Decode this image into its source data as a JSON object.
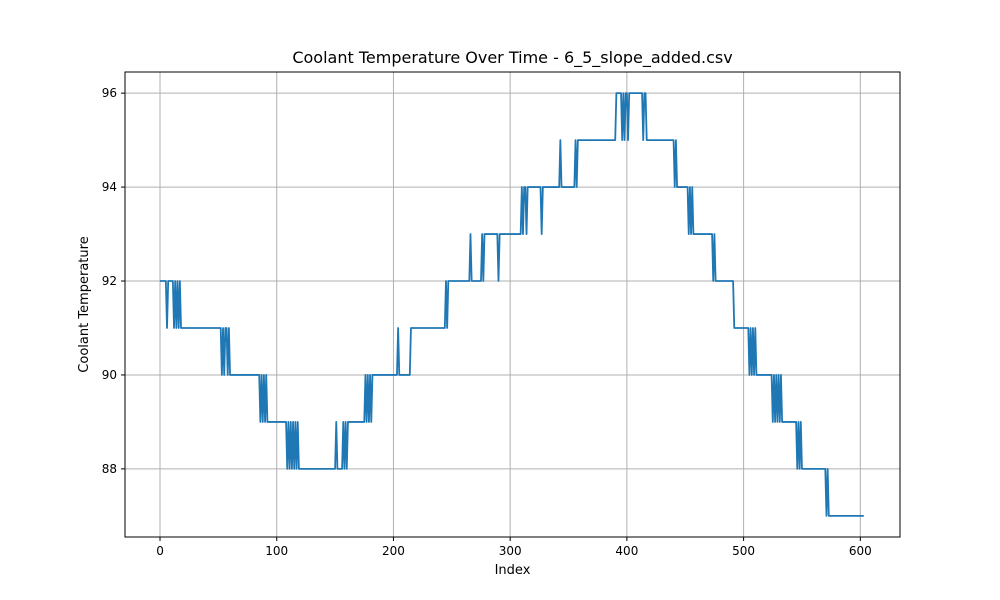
{
  "chart_data": {
    "type": "line",
    "title": "Coolant Temperature Over Time - 6_5_slope_added.csv",
    "xlabel": "Index",
    "ylabel": "Coolant Temperature",
    "xlim": [
      -30,
      634
    ],
    "ylim": [
      86.55,
      96.45
    ],
    "xticks": [
      0,
      100,
      200,
      300,
      400,
      500,
      600
    ],
    "yticks": [
      88,
      90,
      92,
      94,
      96
    ],
    "grid": true,
    "series": [
      {
        "color": "#1f77b4",
        "points": [
          [
            0,
            92
          ],
          [
            5,
            92
          ],
          [
            6,
            91
          ],
          [
            7,
            92
          ],
          [
            11,
            92
          ],
          [
            12,
            91
          ],
          [
            13,
            92
          ],
          [
            14,
            91
          ],
          [
            15,
            92
          ],
          [
            16,
            91
          ],
          [
            17,
            92
          ],
          [
            18,
            91
          ],
          [
            19,
            91
          ],
          [
            52,
            91
          ],
          [
            53,
            90
          ],
          [
            54,
            91
          ],
          [
            55,
            90
          ],
          [
            56,
            91
          ],
          [
            57,
            91
          ],
          [
            58,
            90
          ],
          [
            59,
            91
          ],
          [
            60,
            90
          ],
          [
            85,
            90
          ],
          [
            86,
            89
          ],
          [
            87,
            90
          ],
          [
            88,
            89
          ],
          [
            89,
            90
          ],
          [
            90,
            89
          ],
          [
            91,
            90
          ],
          [
            92,
            89
          ],
          [
            108,
            89
          ],
          [
            109,
            88
          ],
          [
            110,
            89
          ],
          [
            111,
            88
          ],
          [
            112,
            89
          ],
          [
            113,
            88
          ],
          [
            114,
            89
          ],
          [
            115,
            88
          ],
          [
            116,
            89
          ],
          [
            117,
            88
          ],
          [
            118,
            89
          ],
          [
            119,
            88
          ],
          [
            150,
            88
          ],
          [
            151,
            89
          ],
          [
            152,
            88
          ],
          [
            156,
            88
          ],
          [
            157,
            89
          ],
          [
            158,
            88
          ],
          [
            159,
            89
          ],
          [
            160,
            88
          ],
          [
            161,
            89
          ],
          [
            175,
            89
          ],
          [
            176,
            90
          ],
          [
            177,
            89
          ],
          [
            178,
            90
          ],
          [
            179,
            89
          ],
          [
            180,
            90
          ],
          [
            181,
            89
          ],
          [
            182,
            90
          ],
          [
            183,
            90
          ],
          [
            203,
            90
          ],
          [
            204,
            91
          ],
          [
            205,
            90
          ],
          [
            214,
            90
          ],
          [
            215,
            91
          ],
          [
            244,
            91
          ],
          [
            245,
            92
          ],
          [
            246,
            91
          ],
          [
            247,
            92
          ],
          [
            265,
            92
          ],
          [
            266,
            93
          ],
          [
            267,
            92
          ],
          [
            275,
            92
          ],
          [
            276,
            93
          ],
          [
            277,
            92
          ],
          [
            278,
            93
          ],
          [
            279,
            93
          ],
          [
            289,
            93
          ],
          [
            290,
            92
          ],
          [
            291,
            93
          ],
          [
            309,
            93
          ],
          [
            310,
            94
          ],
          [
            311,
            93
          ],
          [
            312,
            94
          ],
          [
            313,
            94
          ],
          [
            314,
            93
          ],
          [
            315,
            94
          ],
          [
            326,
            94
          ],
          [
            327,
            93
          ],
          [
            328,
            94
          ],
          [
            342,
            94
          ],
          [
            343,
            95
          ],
          [
            344,
            94
          ],
          [
            355,
            94
          ],
          [
            356,
            95
          ],
          [
            357,
            94
          ],
          [
            358,
            95
          ],
          [
            390,
            95
          ],
          [
            391,
            96
          ],
          [
            395,
            96
          ],
          [
            396,
            95
          ],
          [
            397,
            96
          ],
          [
            398,
            95
          ],
          [
            399,
            96
          ],
          [
            400,
            96
          ],
          [
            401,
            95
          ],
          [
            402,
            96
          ],
          [
            413,
            96
          ],
          [
            414,
            95
          ],
          [
            415,
            96
          ],
          [
            416,
            96
          ],
          [
            417,
            95
          ],
          [
            440,
            95
          ],
          [
            441,
            94
          ],
          [
            442,
            95
          ],
          [
            443,
            94
          ],
          [
            452,
            94
          ],
          [
            453,
            93
          ],
          [
            454,
            94
          ],
          [
            455,
            93
          ],
          [
            456,
            94
          ],
          [
            457,
            93
          ],
          [
            473,
            93
          ],
          [
            474,
            92
          ],
          [
            475,
            93
          ],
          [
            476,
            92
          ],
          [
            491,
            92
          ],
          [
            492,
            91
          ],
          [
            504,
            91
          ],
          [
            505,
            90
          ],
          [
            506,
            91
          ],
          [
            507,
            90
          ],
          [
            508,
            91
          ],
          [
            509,
            90
          ],
          [
            510,
            91
          ],
          [
            511,
            90
          ],
          [
            524,
            90
          ],
          [
            525,
            89
          ],
          [
            526,
            90
          ],
          [
            527,
            89
          ],
          [
            528,
            90
          ],
          [
            529,
            89
          ],
          [
            530,
            90
          ],
          [
            531,
            89
          ],
          [
            532,
            90
          ],
          [
            533,
            89
          ],
          [
            545,
            89
          ],
          [
            546,
            88
          ],
          [
            547,
            89
          ],
          [
            548,
            88
          ],
          [
            549,
            89
          ],
          [
            550,
            88
          ],
          [
            570,
            88
          ],
          [
            571,
            87
          ],
          [
            572,
            88
          ],
          [
            573,
            87
          ],
          [
            603,
            87
          ]
        ]
      }
    ]
  }
}
